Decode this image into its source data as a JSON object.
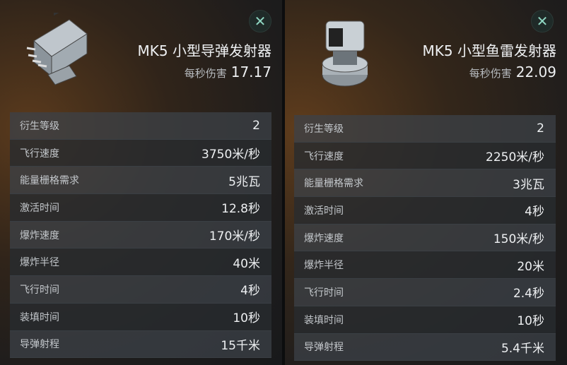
{
  "panels": [
    {
      "title": "MK5 小型导弹发射器",
      "dps_label": "每秒伤害",
      "dps_value": "17.17",
      "icon": "missile-launcher-icon",
      "stats": [
        [
          "衍生等级",
          "2"
        ],
        [
          "飞行速度",
          "3750米/秒"
        ],
        [
          "能量栅格需求",
          "5兆瓦"
        ],
        [
          "激活时间",
          "12.8秒"
        ],
        [
          "爆炸速度",
          "170米/秒"
        ],
        [
          "爆炸半径",
          "40米"
        ],
        [
          "飞行时间",
          "4秒"
        ],
        [
          "装填时间",
          "10秒"
        ],
        [
          "导弹射程",
          "15千米"
        ]
      ]
    },
    {
      "title": "MK5 小型鱼雷发射器",
      "dps_label": "每秒伤害",
      "dps_value": "22.09",
      "icon": "torpedo-launcher-icon",
      "stats": [
        [
          "衍生等级",
          "2"
        ],
        [
          "飞行速度",
          "2250米/秒"
        ],
        [
          "能量栅格需求",
          "3兆瓦"
        ],
        [
          "激活时间",
          "4秒"
        ],
        [
          "爆炸速度",
          "150米/秒"
        ],
        [
          "爆炸半径",
          "20米"
        ],
        [
          "飞行时间",
          "2.4秒"
        ],
        [
          "装填时间",
          "10秒"
        ],
        [
          "导弹射程",
          "5.4千米"
        ]
      ]
    }
  ],
  "close_glyph": "✕",
  "colors": {
    "close_icon": "#8fd6c2"
  }
}
